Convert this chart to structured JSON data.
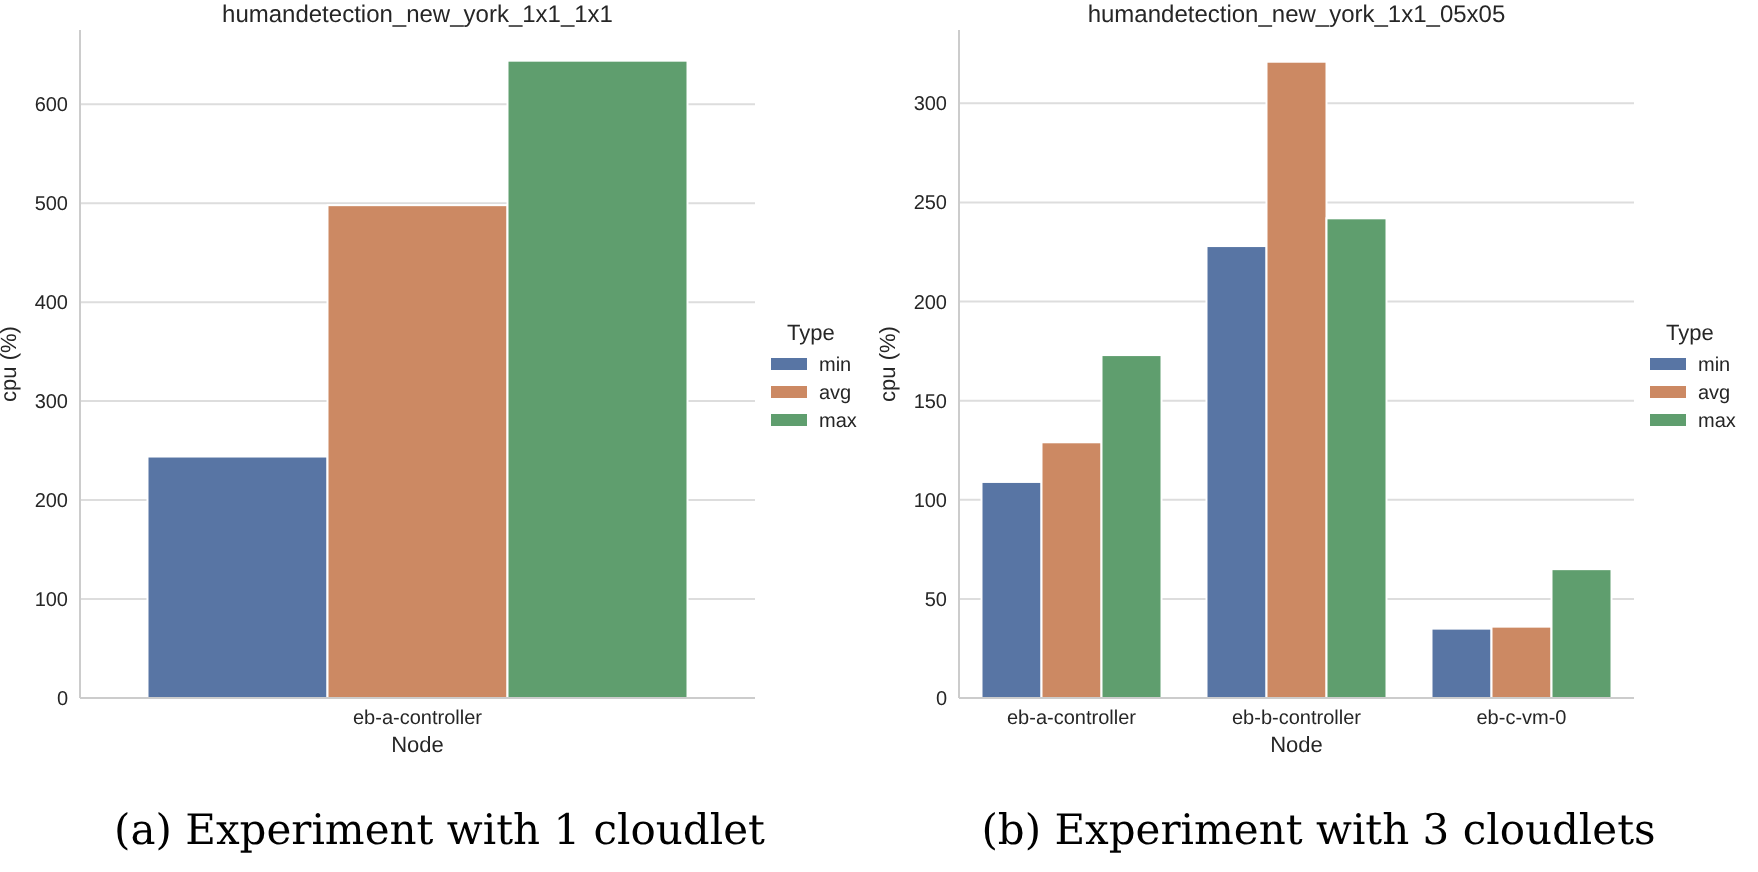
{
  "chart_data": [
    {
      "type": "bar",
      "title": "humandetection_new_york_1x1_1x1",
      "xlabel": "Node",
      "ylabel": "cpu (%)",
      "legend_title": "Type",
      "categories": [
        "eb-a-controller"
      ],
      "series": [
        {
          "name": "min",
          "color": "#5875a4",
          "values": [
            244
          ]
        },
        {
          "name": "avg",
          "color": "#cc8963",
          "values": [
            498
          ]
        },
        {
          "name": "max",
          "color": "#5f9e6e",
          "values": [
            644
          ]
        }
      ],
      "ylim": [
        0,
        675
      ],
      "yticks": [
        0,
        100,
        200,
        300,
        400,
        500,
        600
      ],
      "grid": "y",
      "legend": "right",
      "annotations": [
        "(a) Experiment with 1 cloudlet"
      ]
    },
    {
      "type": "bar",
      "title": "humandetection_new_york_1x1_05x05",
      "xlabel": "Node",
      "ylabel": "cpu (%)",
      "legend_title": "Type",
      "categories": [
        "eb-a-controller",
        "eb-b-controller",
        "eb-c-vm-0"
      ],
      "series": [
        {
          "name": "min",
          "color": "#5875a4",
          "values": [
            109,
            228,
            35
          ]
        },
        {
          "name": "avg",
          "color": "#cc8963",
          "values": [
            129,
            321,
            36
          ]
        },
        {
          "name": "max",
          "color": "#5f9e6e",
          "values": [
            173,
            242,
            65
          ]
        }
      ],
      "ylim": [
        0,
        337
      ],
      "yticks": [
        0,
        50,
        100,
        150,
        200,
        250,
        300
      ],
      "grid": "y",
      "legend": "right",
      "annotations": [
        "(b) Experiment with 3 cloudlets"
      ]
    }
  ]
}
